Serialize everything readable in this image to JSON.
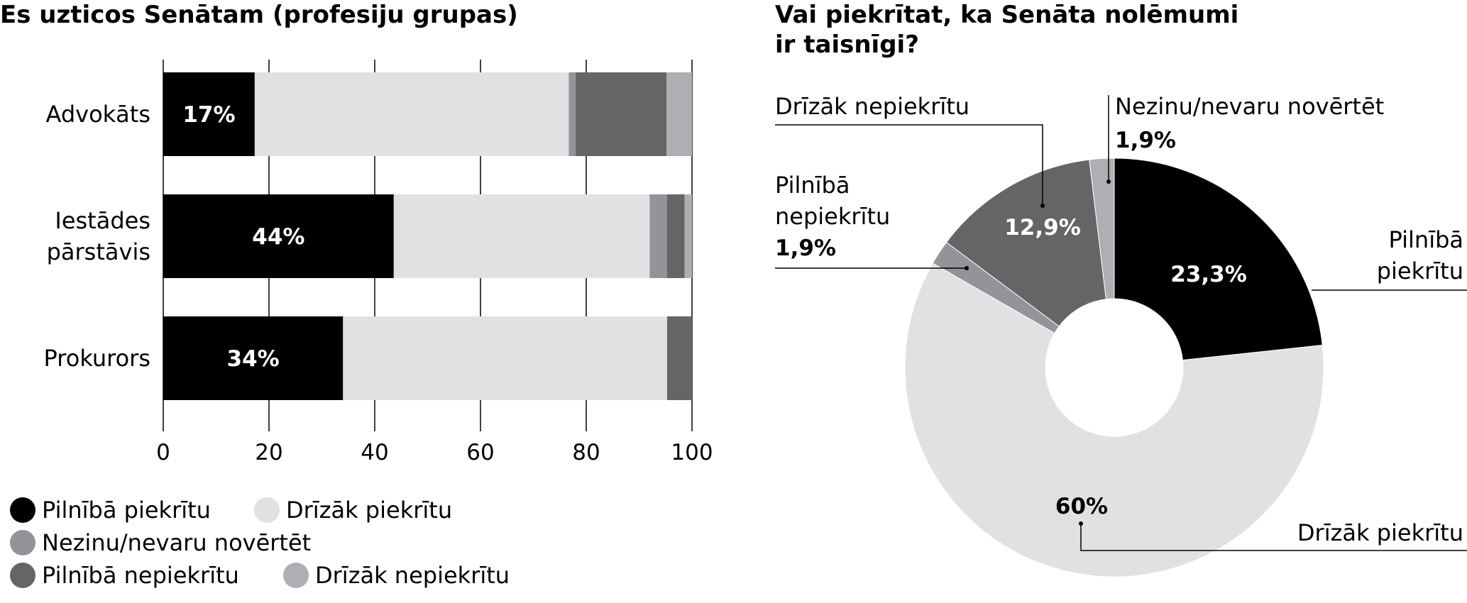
{
  "colors": {
    "pilniba_piekritu": "#000000",
    "drizak_piekritu": "#e1e1e3",
    "nezinu": "#939497",
    "pilniba_nepiekritu": "#646567",
    "drizak_nepiekritu": "#aeafb2"
  },
  "chart_data": [
    {
      "type": "bar",
      "orientation": "horizontal",
      "stacked": true,
      "title": "Es uzticos Senātam (profesiju grupas)",
      "categories": [
        [
          "Advokāts"
        ],
        [
          "Iestādes",
          "pārstāvis"
        ],
        [
          "Prokurors"
        ]
      ],
      "xlim": [
        0,
        100
      ],
      "xticks": [
        "0",
        "20",
        "40",
        "60",
        "80",
        "100"
      ],
      "grid": "vertical",
      "series": [
        {
          "name": "Pilnībā piekrītu",
          "color_key": "pilniba_piekritu",
          "values": [
            17.3,
            43.6,
            34.0
          ],
          "labels": [
            "17%",
            "44%",
            "34%"
          ]
        },
        {
          "name": "Drīzāk piekrītu",
          "color_key": "drizak_piekritu",
          "values": [
            59.4,
            48.4,
            61.3
          ]
        },
        {
          "name": "Nezinu/nevaru novērtēt",
          "color_key": "nezinu",
          "values": [
            1.3,
            3.3,
            0
          ]
        },
        {
          "name": "Pilnībā nepiekrītu",
          "color_key": "pilniba_nepiekritu",
          "values": [
            17.2,
            3.3,
            4.7
          ]
        },
        {
          "name": "Drīzāk nepiekrītu",
          "color_key": "drizak_nepiekritu",
          "values": [
            4.8,
            1.4,
            0
          ]
        }
      ],
      "legend": {
        "placement": "bottom",
        "rows": [
          [
            {
              "label": "Pilnībā piekrītu",
              "color_key": "pilniba_piekritu"
            },
            {
              "label": "Drīzāk piekrītu",
              "color_key": "drizak_piekritu"
            }
          ],
          [
            {
              "label": "Nezinu/nevaru novērtēt",
              "color_key": "nezinu"
            }
          ],
          [
            {
              "label": "Pilnībā nepiekrītu",
              "color_key": "pilniba_nepiekritu"
            },
            {
              "label": "Drīzāk nepiekrītu",
              "color_key": "drizak_nepiekritu"
            }
          ]
        ]
      }
    },
    {
      "type": "pie",
      "donut": true,
      "title": [
        "Vai piekrītat, ka Senāta nolēmumi",
        "ir taisnīgi?"
      ],
      "slices": [
        {
          "name": [
            "Pilnībā",
            "piekrītu"
          ],
          "value": 23.3,
          "label": "23,3%",
          "color_key": "pilniba_piekritu"
        },
        {
          "name": [
            "Drīzāk piekrītu"
          ],
          "value": 60,
          "label": "60%",
          "color_key": "drizak_piekritu"
        },
        {
          "name": [
            "Pilnībā",
            "nepiekrītu"
          ],
          "value": 1.9,
          "label": "1,9%",
          "color_key": "nezinu"
        },
        {
          "name": [
            "Drīzāk nepiekrītu"
          ],
          "value": 12.9,
          "label": "12,9%",
          "color_key": "pilniba_nepiekritu"
        },
        {
          "name": [
            "Nezinu/nevaru novērtēt"
          ],
          "value": 1.9,
          "label": "1,9%",
          "color_key": "drizak_nepiekritu"
        }
      ]
    }
  ]
}
